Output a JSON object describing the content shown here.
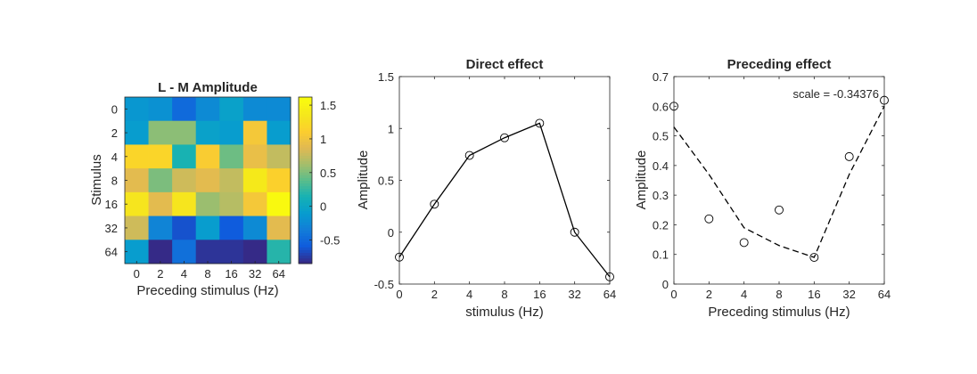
{
  "chart_data": [
    {
      "type": "heatmap",
      "title": "L - M Amplitude",
      "xlabel": "Preceding stimulus (Hz)",
      "ylabel": "Stimulus",
      "x_categories": [
        "0",
        "2",
        "4",
        "8",
        "16",
        "32",
        "64"
      ],
      "y_categories": [
        "0",
        "2",
        "4",
        "8",
        "16",
        "32",
        "64"
      ],
      "values": [
        [
          -0.15,
          -0.2,
          -0.5,
          -0.25,
          -0.05,
          -0.25,
          -0.25
        ],
        [
          -0.1,
          0.55,
          0.55,
          -0.05,
          -0.1,
          1.05,
          -0.1
        ],
        [
          1.2,
          1.2,
          0.15,
          1.1,
          0.45,
          0.95,
          0.75
        ],
        [
          0.9,
          0.5,
          0.8,
          0.9,
          0.75,
          1.4,
          1.15
        ],
        [
          1.35,
          0.9,
          1.35,
          0.6,
          0.7,
          1.05,
          1.6
        ],
        [
          0.8,
          -0.3,
          -0.65,
          -0.1,
          -0.6,
          -0.25,
          0.9
        ],
        [
          -0.1,
          -0.85,
          -0.45,
          -0.8,
          -0.8,
          -0.9,
          0.2
        ]
      ],
      "colorbar": {
        "min": -0.85,
        "max": 1.62,
        "ticks": [
          -0.5,
          0,
          0.5,
          1,
          1.5
        ],
        "tick_labels": [
          "-0.5",
          "0",
          "0.5",
          "1",
          "1.5"
        ]
      }
    },
    {
      "type": "line",
      "title": "Direct effect",
      "xlabel": "stimulus (Hz)",
      "ylabel": "Amplitude",
      "x": [
        "0",
        "2",
        "4",
        "8",
        "16",
        "32",
        "64"
      ],
      "y": [
        -0.24,
        0.27,
        0.74,
        0.91,
        1.05,
        0.0,
        -0.43
      ],
      "ylim": [
        -0.5,
        1.5
      ],
      "y_ticks": [
        -0.5,
        0,
        0.5,
        1,
        1.5
      ],
      "y_tick_labels": [
        "-0.5",
        "0",
        "0.5",
        "1",
        "1.5"
      ],
      "line_style": "solid",
      "marker": "open-circle"
    },
    {
      "type": "scatter",
      "title": "Preceding effect",
      "xlabel": "Preceding stimulus (Hz)",
      "ylabel": "Amplitude",
      "annotation": "scale = -0.34376",
      "x": [
        "0",
        "2",
        "4",
        "8",
        "16",
        "32",
        "64"
      ],
      "points": [
        0.6,
        0.22,
        0.14,
        0.25,
        0.09,
        0.43,
        0.62
      ],
      "fit_line": [
        0.53,
        0.37,
        0.19,
        0.13,
        0.09,
        0.37,
        0.6
      ],
      "ylim": [
        0,
        0.7
      ],
      "y_ticks": [
        0,
        0.1,
        0.2,
        0.3,
        0.4,
        0.5,
        0.6,
        0.7
      ],
      "y_tick_labels": [
        "0",
        "0.1",
        "0.2",
        "0.3",
        "0.4",
        "0.5",
        "0.6",
        "0.7"
      ],
      "fit_line_style": "dashed",
      "marker": "open-circle"
    }
  ]
}
